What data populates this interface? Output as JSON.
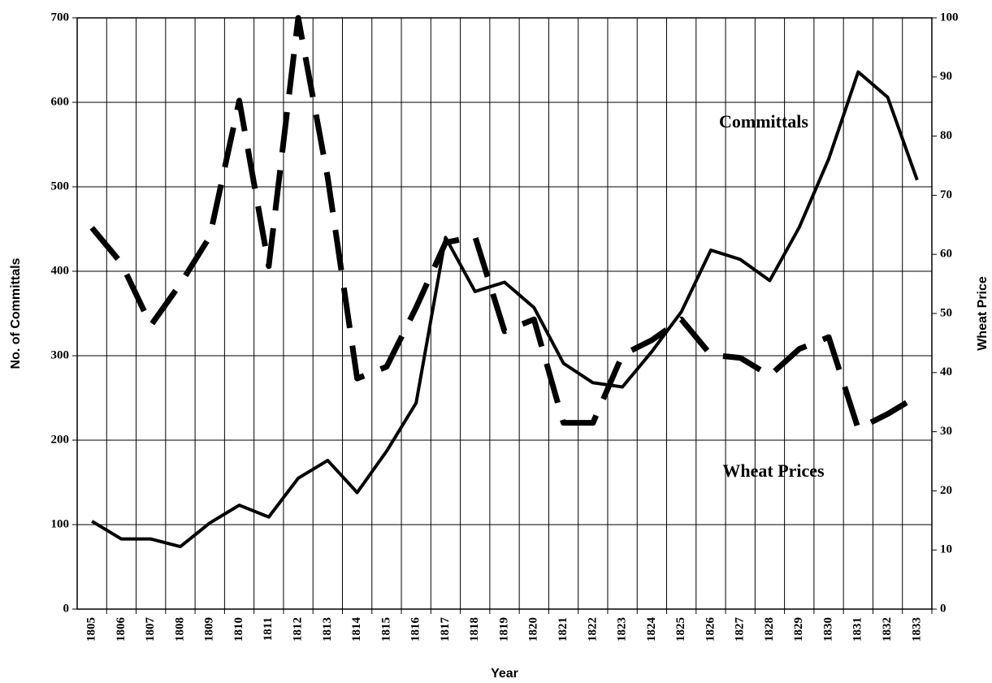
{
  "chart_data": {
    "type": "line",
    "x_label": "Year",
    "y_label": "No. of Committals",
    "y2_label": "Wheat Price",
    "annotations": [
      "Committals",
      "Wheat Prices"
    ],
    "categories": [
      "1805",
      "1806",
      "1807",
      "1808",
      "1809",
      "1810",
      "1811",
      "1812",
      "1813",
      "1814",
      "1815",
      "1816",
      "1817",
      "1818",
      "1819",
      "1820",
      "1821",
      "1822",
      "1823",
      "1824",
      "1825",
      "1826",
      "1827",
      "1828",
      "1829",
      "1830",
      "1831",
      "1832",
      "1833"
    ],
    "series": [
      {
        "name": "Committals",
        "color": "#000000",
        "dashed": false,
        "axis": "y",
        "values": [
          104,
          83,
          83,
          74,
          102,
          123,
          109,
          155,
          176,
          138,
          187,
          244,
          440,
          376,
          387,
          357,
          291,
          268,
          263,
          305,
          352,
          425,
          414,
          389,
          452,
          533,
          636,
          606,
          508
        ]
      },
      {
        "name": "Wheat Prices",
        "color": "#000000",
        "dashed": true,
        "axis": "y2",
        "values": [
          64.5,
          58.5,
          48,
          55,
          63,
          86,
          58,
          100,
          73,
          39,
          41,
          51,
          62,
          63,
          47,
          49,
          31.5,
          31.5,
          43,
          45.5,
          49,
          43,
          42.5,
          39.5,
          44,
          46,
          30.5,
          33,
          36
        ]
      }
    ],
    "ylim": [
      0,
      700
    ],
    "yticks": [
      0,
      100,
      200,
      300,
      400,
      500,
      600,
      700
    ],
    "y2lim": [
      0,
      100
    ],
    "y2ticks": [
      0,
      10,
      20,
      30,
      40,
      50,
      60,
      70,
      80,
      90,
      100
    ],
    "grid": true
  }
}
